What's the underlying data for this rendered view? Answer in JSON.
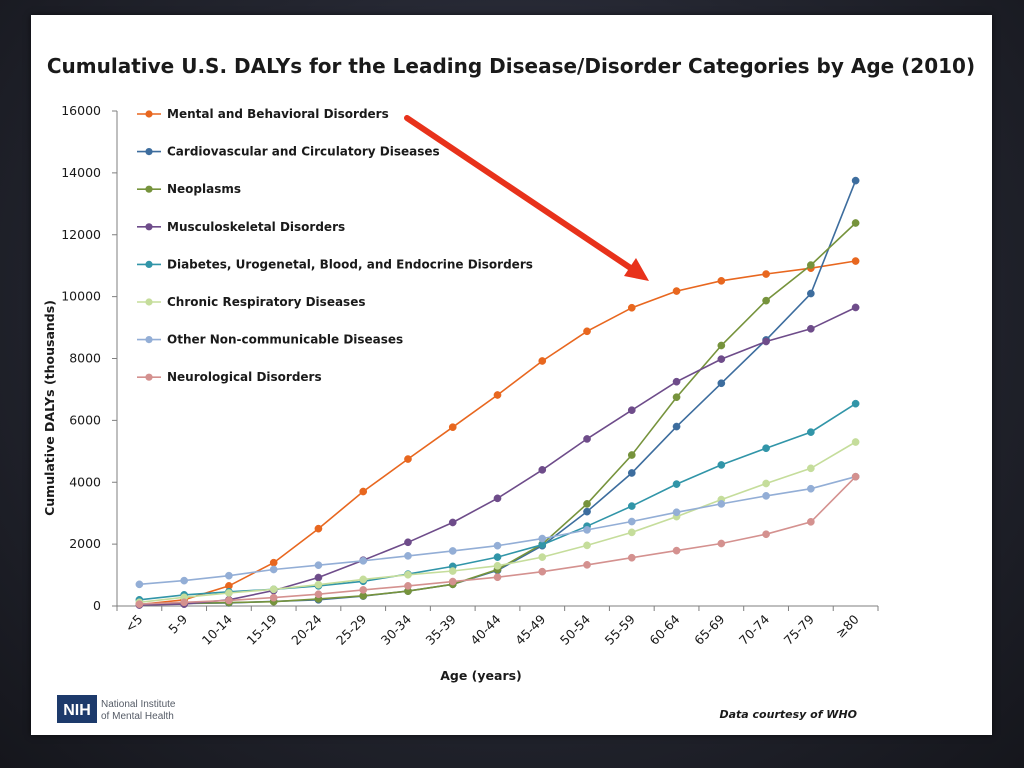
{
  "chart_data": {
    "type": "line",
    "title": "Cumulative U.S. DALYs for the Leading Disease/Disorder Categories by Age (2010)",
    "xlabel": "Age (years)",
    "ylabel": "Cumulative DALYs (thousands)",
    "ylim": [
      0,
      16000
    ],
    "yticks": [
      "0",
      "2000",
      "4000",
      "6000",
      "8000",
      "10000",
      "12000",
      "14000",
      "16000"
    ],
    "categories": [
      "<5",
      "5-9",
      "10-14",
      "15-19",
      "20-24",
      "25-29",
      "30-34",
      "35-39",
      "40-44",
      "45-49",
      "50-54",
      "55-59",
      "60-64",
      "65-69",
      "70-74",
      "75-79",
      "≥80"
    ],
    "legend_position": "top-left",
    "grid": false,
    "series": [
      {
        "name": "Mental and Behavioral Disorders",
        "color": "#e8671f",
        "values": [
          50,
          200,
          650,
          1400,
          2500,
          3700,
          4750,
          5780,
          6820,
          7920,
          8880,
          9640,
          10180,
          10510,
          10730,
          10920,
          11150
        ]
      },
      {
        "name": "Cardiovascular and Circulatory Diseases",
        "color": "#3d6d9e",
        "values": [
          50,
          80,
          100,
          150,
          200,
          320,
          480,
          700,
          1150,
          1950,
          3050,
          4300,
          5800,
          7200,
          8600,
          10100,
          13750
        ]
      },
      {
        "name": "Neoplasms",
        "color": "#76933c",
        "values": [
          50,
          80,
          110,
          140,
          230,
          330,
          480,
          700,
          1180,
          2000,
          3300,
          4880,
          6750,
          8420,
          9870,
          11020,
          12380
        ]
      },
      {
        "name": "Musculoskeletal Disorders",
        "color": "#6e4c8a",
        "values": [
          30,
          60,
          200,
          500,
          920,
          1480,
          2060,
          2700,
          3480,
          4400,
          5400,
          6330,
          7250,
          7980,
          8550,
          8960,
          9650
        ]
      },
      {
        "name": "Diabetes, Urogenetal, Blood, and Endocrine Disorders",
        "color": "#3195a8",
        "values": [
          200,
          360,
          460,
          540,
          650,
          800,
          1030,
          1280,
          1580,
          1980,
          2580,
          3230,
          3940,
          4560,
          5100,
          5620,
          6540
        ]
      },
      {
        "name": "Chronic Respiratory Diseases",
        "color": "#c5dd9b",
        "values": [
          120,
          280,
          420,
          540,
          690,
          860,
          1010,
          1130,
          1300,
          1580,
          1960,
          2380,
          2890,
          3440,
          3960,
          4450,
          5300
        ]
      },
      {
        "name": "Other Non-communicable Diseases",
        "color": "#93aed6",
        "values": [
          700,
          820,
          980,
          1180,
          1320,
          1460,
          1620,
          1780,
          1950,
          2180,
          2460,
          2730,
          3030,
          3300,
          3560,
          3790,
          4180
        ]
      },
      {
        "name": "Neurological Disorders",
        "color": "#d4918f",
        "values": [
          60,
          120,
          180,
          270,
          380,
          520,
          650,
          790,
          930,
          1110,
          1330,
          1560,
          1790,
          2020,
          2320,
          2720,
          4180
        ]
      }
    ]
  },
  "footer": {
    "credit": "Data courtesy of WHO",
    "logo_abbrev": "NIH",
    "logo_line1": "National Institute",
    "logo_line2": "of Mental Health"
  }
}
